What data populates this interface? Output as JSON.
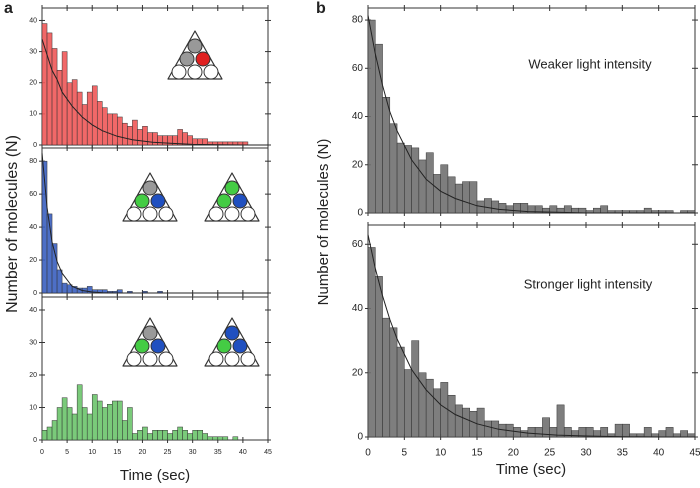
{
  "chart_data": [
    {
      "type": "histogram",
      "panel_label": "a",
      "color": "#f05858",
      "bins": [
        0,
        1,
        2,
        3,
        4,
        5,
        6,
        7,
        8,
        9,
        10,
        11,
        12,
        13,
        14,
        15,
        16,
        17,
        18,
        19,
        20,
        21,
        22,
        23,
        24,
        25,
        26,
        27,
        28,
        29,
        30,
        31,
        32,
        33,
        34,
        35,
        36,
        37,
        38,
        39,
        40,
        41,
        42,
        43,
        44,
        45
      ],
      "values": [
        39,
        36,
        31,
        24,
        30,
        20,
        21,
        17,
        13,
        17,
        19,
        14,
        12,
        10,
        10,
        9,
        7,
        6,
        8,
        5,
        6,
        4,
        4,
        3,
        3,
        3,
        3,
        5,
        4,
        3,
        2,
        2,
        2,
        1,
        1,
        1,
        1,
        1,
        1,
        1,
        1,
        0,
        0,
        0,
        0
      ],
      "fit": {
        "x": [
          0,
          1,
          2,
          3,
          4,
          6,
          8,
          10,
          12,
          15,
          18,
          22,
          26,
          30,
          35,
          40,
          45
        ],
        "values": [
          34,
          29,
          24,
          21,
          17,
          12.5,
          9,
          6.5,
          4.6,
          2.8,
          1.7,
          0.9,
          0.5,
          0.2,
          0.1,
          0,
          0
        ]
      },
      "xlim": [
        0,
        45
      ],
      "xticks": [
        0,
        5,
        10,
        15,
        20,
        25,
        30,
        35,
        40,
        45
      ],
      "ylim": [
        0,
        44
      ],
      "yticks": [
        0,
        10,
        20,
        30,
        40
      ]
    },
    {
      "type": "histogram",
      "color": "#3a5fc0",
      "ylabel": "Number of molecules (N)",
      "bins": [
        0,
        1,
        2,
        3,
        4,
        5,
        6,
        7,
        8,
        9,
        10,
        11,
        12,
        13,
        14,
        15,
        16,
        17,
        18,
        19,
        20,
        21,
        22,
        23,
        24,
        25,
        26,
        27,
        28,
        29,
        30,
        31,
        32,
        33,
        34,
        35,
        36,
        37,
        38,
        39,
        40,
        41,
        42,
        43,
        44,
        45
      ],
      "values": [
        80,
        48,
        30,
        14,
        6,
        5,
        4,
        3,
        3,
        4,
        2,
        2,
        2,
        1,
        1,
        2,
        0,
        1,
        0,
        0,
        1,
        0,
        0,
        1,
        0,
        0,
        0,
        0,
        0,
        0,
        0,
        0,
        0,
        0,
        0,
        0,
        0,
        0,
        0,
        0,
        0,
        0,
        0,
        0,
        0
      ],
      "fit": {
        "x": [
          0,
          1,
          2,
          3,
          4,
          6,
          8,
          10,
          12,
          15,
          18,
          22,
          26,
          30,
          35,
          40,
          45
        ],
        "values": [
          85,
          52,
          31,
          19,
          12,
          4,
          1.5,
          0.6,
          0.2,
          0,
          0,
          0,
          0,
          0,
          0,
          0,
          0
        ]
      },
      "xlim": [
        0,
        45
      ],
      "xticks": [
        0,
        5,
        10,
        15,
        20,
        25,
        30,
        35,
        40,
        45
      ],
      "ylim": [
        0,
        88
      ],
      "yticks": [
        0,
        20,
        40,
        60,
        80
      ]
    },
    {
      "type": "histogram",
      "color": "#6cc46c",
      "xlabel": "Time (sec)",
      "bins": [
        0,
        1,
        2,
        3,
        4,
        5,
        6,
        7,
        8,
        9,
        10,
        11,
        12,
        13,
        14,
        15,
        16,
        17,
        18,
        19,
        20,
        21,
        22,
        23,
        24,
        25,
        26,
        27,
        28,
        29,
        30,
        31,
        32,
        33,
        34,
        35,
        36,
        37,
        38,
        39,
        40,
        41,
        42,
        43,
        44,
        45
      ],
      "values": [
        3,
        4,
        6,
        10,
        13,
        10,
        8,
        17,
        10,
        8,
        14,
        12,
        10,
        11,
        12,
        12,
        6,
        10,
        2,
        3,
        4,
        2,
        3,
        3,
        3,
        2,
        3,
        4,
        3,
        2,
        3,
        3,
        2,
        1,
        1,
        1,
        1,
        0,
        1,
        0,
        0,
        0,
        0,
        0,
        0
      ],
      "xlim": [
        0,
        45
      ],
      "xticks": [
        0,
        5,
        10,
        15,
        20,
        25,
        30,
        35,
        40,
        45
      ],
      "ylim": [
        0,
        44
      ],
      "yticks": [
        0,
        10,
        20,
        30,
        40
      ]
    },
    {
      "type": "histogram",
      "panel_label": "b",
      "color": "#707070",
      "ylabel": "Number of molecules (N)",
      "annotation": "Weaker light intensity",
      "bins": [
        0,
        1,
        2,
        3,
        4,
        5,
        6,
        7,
        8,
        9,
        10,
        11,
        12,
        13,
        14,
        15,
        16,
        17,
        18,
        19,
        20,
        21,
        22,
        23,
        24,
        25,
        26,
        27,
        28,
        29,
        30,
        31,
        32,
        33,
        34,
        35,
        36,
        37,
        38,
        39,
        40,
        41,
        42,
        43,
        44,
        45
      ],
      "values": [
        80,
        70,
        48,
        37,
        29,
        28,
        27,
        22,
        25,
        16,
        20,
        15,
        12,
        13,
        13,
        5,
        6,
        5,
        4,
        3,
        4,
        4,
        3,
        3,
        2,
        3,
        2,
        3,
        2,
        2,
        1,
        2,
        3,
        1,
        1,
        1,
        1,
        1,
        2,
        1,
        1,
        1,
        0,
        1,
        1
      ],
      "fit": {
        "x": [
          0,
          1,
          2,
          3,
          4,
          6,
          8,
          10,
          12,
          15,
          18,
          22,
          26,
          30,
          35,
          40,
          45
        ],
        "values": [
          82,
          66,
          53,
          42,
          34,
          22,
          14,
          9,
          6,
          3,
          1.5,
          0.6,
          0.3,
          0,
          0,
          0,
          0
        ]
      },
      "xlim": [
        0,
        45
      ],
      "xticks": [
        0,
        5,
        10,
        15,
        20,
        25,
        30,
        35,
        40,
        45
      ],
      "ylim": [
        0,
        85
      ],
      "yticks": [
        0,
        20,
        40,
        60,
        80
      ]
    },
    {
      "type": "histogram",
      "color": "#707070",
      "xlabel": "Time (sec)",
      "annotation": "Stronger light intensity",
      "bins": [
        0,
        1,
        2,
        3,
        4,
        5,
        6,
        7,
        8,
        9,
        10,
        11,
        12,
        13,
        14,
        15,
        16,
        17,
        18,
        19,
        20,
        21,
        22,
        23,
        24,
        25,
        26,
        27,
        28,
        29,
        30,
        31,
        32,
        33,
        34,
        35,
        36,
        37,
        38,
        39,
        40,
        41,
        42,
        43,
        44,
        45
      ],
      "values": [
        59,
        50,
        37,
        34,
        28,
        21,
        30,
        20,
        18,
        15,
        17,
        13,
        10,
        9,
        8,
        9,
        5,
        5,
        4,
        4,
        3,
        2,
        3,
        3,
        6,
        3,
        10,
        3,
        2,
        3,
        3,
        2,
        3,
        1,
        4,
        4,
        1,
        1,
        3,
        1,
        2,
        3,
        1,
        2,
        1
      ],
      "fit": {
        "x": [
          0,
          1,
          2,
          3,
          4,
          6,
          8,
          10,
          12,
          15,
          18,
          22,
          26,
          30,
          35,
          40,
          45
        ],
        "values": [
          63,
          52.5,
          44,
          36.6,
          30.5,
          21,
          14.7,
          10,
          7,
          4.1,
          2.4,
          1.2,
          0.6,
          0.3,
          0.1,
          0,
          0
        ]
      },
      "xlim": [
        0,
        45
      ],
      "xticks": [
        0,
        5,
        10,
        15,
        20,
        25,
        30,
        35,
        40,
        45
      ],
      "ylim": [
        0,
        66
      ],
      "yticks": [
        0,
        20,
        40,
        60
      ]
    }
  ]
}
